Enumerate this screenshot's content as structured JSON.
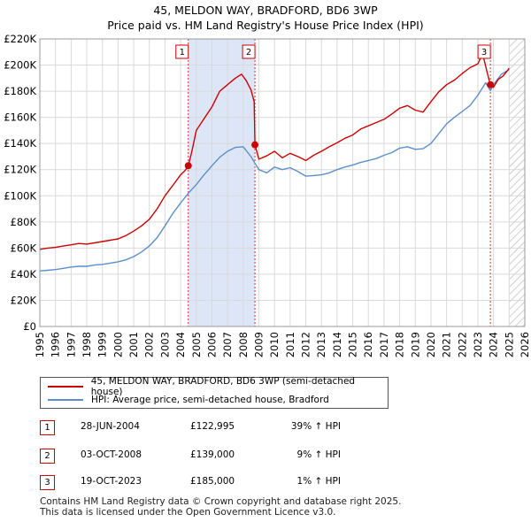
{
  "chart_data": {
    "type": "line",
    "title": "45, MELDON WAY, BRADFORD, BD6 3WP",
    "subtitle": "Price paid vs. HM Land Registry's House Price Index (HPI)",
    "xlabel": "",
    "ylabel": "",
    "xlim": [
      1995,
      2026
    ],
    "ylim": [
      0,
      220000
    ],
    "grid": true,
    "x_ticks": [
      1995,
      1996,
      1997,
      1998,
      1999,
      2000,
      2001,
      2002,
      2003,
      2004,
      2005,
      2006,
      2007,
      2008,
      2009,
      2010,
      2011,
      2012,
      2013,
      2014,
      2015,
      2016,
      2017,
      2018,
      2019,
      2020,
      2021,
      2022,
      2023,
      2024,
      2025,
      2026
    ],
    "y_ticks": [
      0,
      20000,
      40000,
      60000,
      80000,
      100000,
      120000,
      140000,
      160000,
      180000,
      200000,
      220000
    ],
    "y_tick_labels": [
      "£0",
      "£20K",
      "£40K",
      "£60K",
      "£80K",
      "£100K",
      "£120K",
      "£140K",
      "£160K",
      "£180K",
      "£200K",
      "£220K"
    ],
    "colors": {
      "price_paid": "#cc0000",
      "hpi": "#5b8fc9",
      "shade": "#dde6f7",
      "forecast_hatch": "#bbbbbb",
      "vline": "#cc0000"
    },
    "shaded_periods": [
      [
        2004.49,
        2008.75
      ]
    ],
    "forecast_start": 2025.0,
    "series": [
      {
        "name": "45, MELDON WAY, BRADFORD, BD6 3WP (semi-detached house)",
        "color": "#cc0000",
        "x": [
          1995.0,
          1995.5,
          1996.0,
          1996.5,
          1997.0,
          1997.5,
          1998.0,
          1998.5,
          1999.0,
          1999.5,
          2000.0,
          2000.5,
          2001.0,
          2001.5,
          2002.0,
          2002.5,
          2003.0,
          2003.5,
          2004.0,
          2004.3,
          2004.49,
          2004.7,
          2005.0,
          2005.5,
          2006.0,
          2006.5,
          2007.0,
          2007.5,
          2007.9,
          2008.2,
          2008.5,
          2008.7,
          2008.75,
          2009.0,
          2009.5,
          2010.0,
          2010.5,
          2011.0,
          2011.5,
          2012.0,
          2012.5,
          2013.0,
          2013.5,
          2014.0,
          2014.5,
          2015.0,
          2015.5,
          2016.0,
          2016.5,
          2017.0,
          2017.5,
          2018.0,
          2018.5,
          2019.0,
          2019.5,
          2020.0,
          2020.5,
          2021.0,
          2021.5,
          2022.0,
          2022.5,
          2023.0,
          2023.3,
          2023.6,
          2023.8,
          2024.0,
          2024.3,
          2024.6,
          2024.9,
          2025.0
        ],
        "y": [
          59000,
          60000,
          60500,
          61500,
          62500,
          63500,
          63000,
          64000,
          65000,
          66000,
          67000,
          69500,
          73000,
          77000,
          82000,
          90000,
          100000,
          108000,
          116000,
          119500,
          122995,
          133000,
          150000,
          159000,
          168000,
          180000,
          185000,
          190000,
          193000,
          188000,
          181000,
          172000,
          139000,
          128000,
          130500,
          134000,
          129000,
          132500,
          130000,
          127000,
          131000,
          134000,
          137500,
          140500,
          144000,
          146500,
          151000,
          153500,
          156000,
          158500,
          162500,
          167000,
          169000,
          165500,
          164000,
          172000,
          179500,
          185000,
          188500,
          193500,
          198000,
          201000,
          209000,
          194000,
          185000,
          183000,
          189000,
          191500,
          196000,
          197500
        ]
      },
      {
        "name": "HPI: Average price, semi-detached house, Bradford",
        "color": "#5b8fc9",
        "x": [
          1995.0,
          1995.5,
          1996.0,
          1996.5,
          1997.0,
          1997.5,
          1998.0,
          1998.5,
          1999.0,
          1999.5,
          2000.0,
          2000.5,
          2001.0,
          2001.5,
          2002.0,
          2002.5,
          2003.0,
          2003.5,
          2004.0,
          2004.5,
          2005.0,
          2005.5,
          2006.0,
          2006.5,
          2007.0,
          2007.5,
          2008.0,
          2008.5,
          2009.0,
          2009.5,
          2010.0,
          2010.5,
          2011.0,
          2011.5,
          2012.0,
          2012.5,
          2013.0,
          2013.5,
          2014.0,
          2014.5,
          2015.0,
          2015.5,
          2016.0,
          2016.5,
          2017.0,
          2017.5,
          2018.0,
          2018.5,
          2019.0,
          2019.5,
          2020.0,
          2020.5,
          2021.0,
          2021.5,
          2022.0,
          2022.5,
          2023.0,
          2023.5,
          2023.8,
          2024.0,
          2024.5,
          2025.0
        ],
        "y": [
          42500,
          43000,
          43500,
          44500,
          45500,
          46000,
          46000,
          47000,
          47500,
          48500,
          49500,
          51000,
          53500,
          57000,
          61500,
          68000,
          77000,
          86500,
          94500,
          102000,
          108500,
          116000,
          123000,
          129500,
          134000,
          137000,
          137500,
          130000,
          120000,
          117500,
          122000,
          120000,
          121500,
          118500,
          115000,
          115500,
          116000,
          117500,
          120000,
          122000,
          123500,
          125500,
          127000,
          128500,
          131000,
          133000,
          136500,
          137500,
          135500,
          136000,
          140000,
          147500,
          155000,
          160000,
          164500,
          169000,
          177000,
          186500,
          180500,
          185000,
          193000,
          196500
        ]
      }
    ],
    "sale_markers": [
      {
        "id": "1",
        "x": 2004.49,
        "y": 122995
      },
      {
        "id": "2",
        "x": 2008.75,
        "y": 139000
      },
      {
        "id": "3",
        "x": 2023.8,
        "y": 185000
      }
    ]
  },
  "legend": {
    "price_label": "45, MELDON WAY, BRADFORD, BD6 3WP (semi-detached house)",
    "hpi_label": "HPI: Average price, semi-detached house, Bradford"
  },
  "transactions": [
    {
      "id": "1",
      "date": "28-JUN-2004",
      "price": "£122,995",
      "hpi_change": "39% ↑ HPI"
    },
    {
      "id": "2",
      "date": "03-OCT-2008",
      "price": "£139,000",
      "hpi_change": "9% ↑ HPI"
    },
    {
      "id": "3",
      "date": "19-OCT-2023",
      "price": "£185,000",
      "hpi_change": "1% ↑ HPI"
    }
  ],
  "footer": {
    "line1": "Contains HM Land Registry data © Crown copyright and database right 2025.",
    "line2": "This data is licensed under the Open Government Licence v3.0."
  }
}
